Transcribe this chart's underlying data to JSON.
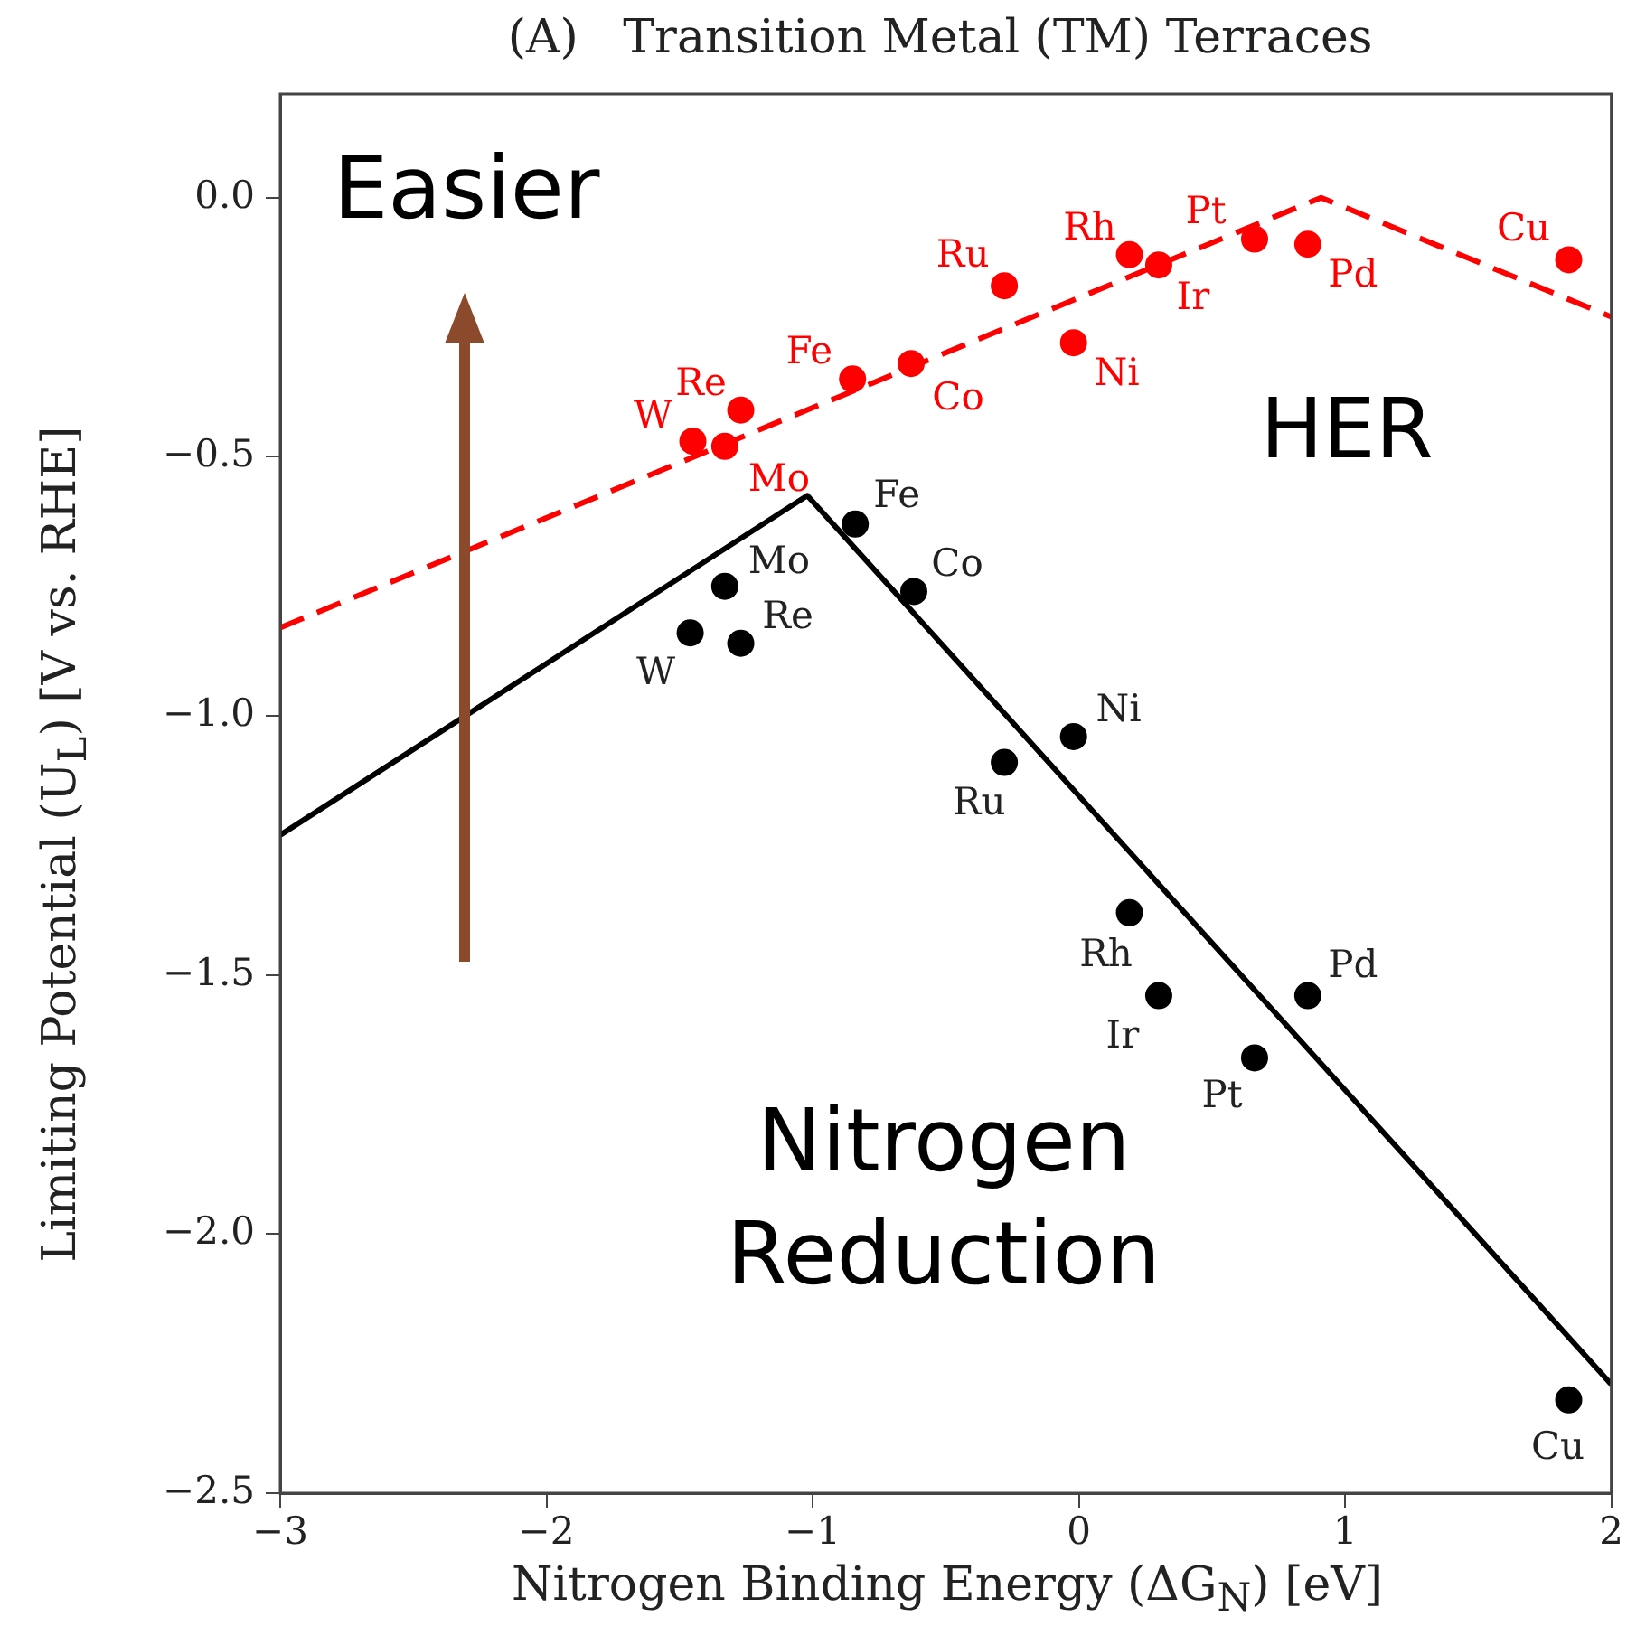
{
  "chart_data": {
    "type": "scatter",
    "title": "(A)   Transition Metal (TM) Terraces",
    "xlabel": "Nitrogen Binding Energy (ΔG$_{N}$) [eV]",
    "ylabel": "Limiting Potential (U$_{L}$) [V vs. RHE]",
    "xlim": [
      -3,
      2
    ],
    "ylim": [
      -2.5,
      0.2
    ],
    "xticks": [
      {
        "value": -3,
        "label": "−3"
      },
      {
        "value": -2,
        "label": "−2"
      },
      {
        "value": -1,
        "label": "−1"
      },
      0,
      1,
      2
    ],
    "yticks": [
      {
        "value": -2.5,
        "label": "−2.5"
      },
      {
        "value": -2,
        "label": "−2.0"
      },
      {
        "value": -1.5,
        "label": "−1.5"
      },
      {
        "value": -1,
        "label": "−1.0"
      },
      {
        "value": -0.5,
        "label": "−0.5"
      },
      {
        "value": 0,
        "label": "0.0"
      }
    ],
    "grid": false,
    "legend": false,
    "marker": "circle",
    "series": [
      {
        "type": "line",
        "color": "#ff0000",
        "line_style": "dashed",
        "marker": "none",
        "x": [
          -3,
          0.91,
          2
        ],
        "values": [
          -0.83,
          0.0,
          -0.23
        ]
      },
      {
        "type": "line",
        "color": "#000000",
        "line_style": "solid",
        "marker": "none",
        "x": [
          -3,
          -1.02,
          2
        ],
        "values": [
          -1.23,
          -0.575,
          -2.29
        ]
      },
      {
        "color": "#ff0000",
        "x": [
          -1.45,
          -1.33,
          -1.27,
          -0.85,
          -0.63,
          -0.28,
          -0.02,
          0.19,
          0.3,
          0.66,
          0.86,
          1.84
        ],
        "values": [
          -0.47,
          -0.48,
          -0.41,
          -0.35,
          -0.32,
          -0.17,
          -0.28,
          -0.11,
          -0.13,
          -0.08,
          -0.09,
          -0.12
        ]
      },
      {
        "color": "#000000",
        "x": [
          -1.46,
          -1.33,
          -1.27,
          -0.84,
          -0.62,
          -0.02,
          -0.28,
          0.19,
          0.3,
          0.86,
          0.66,
          1.84
        ],
        "values": [
          -0.84,
          -0.75,
          -0.86,
          -0.63,
          -0.76,
          -1.04,
          -1.09,
          -1.38,
          -1.54,
          -1.54,
          -1.66,
          -2.32
        ]
      }
    ],
    "annotations": [
      {
        "text": "W",
        "x": -1.45,
        "y": -0.47
      },
      {
        "text": "Mo",
        "x": -1.33,
        "y": -0.48
      },
      {
        "text": "Re",
        "x": -1.27,
        "y": -0.41
      },
      {
        "text": "Fe",
        "x": -0.85,
        "y": -0.35
      },
      {
        "text": "Co",
        "x": -0.63,
        "y": -0.32
      },
      {
        "text": "Ru",
        "x": -0.28,
        "y": -0.17
      },
      {
        "text": "Ni",
        "x": -0.02,
        "y": -0.28
      },
      {
        "text": "Rh",
        "x": 0.19,
        "y": -0.11
      },
      {
        "text": "Ir",
        "x": 0.3,
        "y": -0.13
      },
      {
        "text": "Pt",
        "x": 0.66,
        "y": -0.08
      },
      {
        "text": "Pd",
        "x": 0.86,
        "y": -0.09
      },
      {
        "text": "Cu",
        "x": 1.84,
        "y": -0.12
      },
      {
        "text": "W",
        "x": -1.46,
        "y": -0.84
      },
      {
        "text": "Mo",
        "x": -1.33,
        "y": -0.75
      },
      {
        "text": "Re",
        "x": -1.27,
        "y": -0.86
      },
      {
        "text": "Fe",
        "x": -0.84,
        "y": -0.63
      },
      {
        "text": "Co",
        "x": -0.62,
        "y": -0.76
      },
      {
        "text": "Ni",
        "x": -0.02,
        "y": -1.04
      },
      {
        "text": "Ru",
        "x": -0.28,
        "y": -1.09
      },
      {
        "text": "Rh",
        "x": 0.19,
        "y": -1.38
      },
      {
        "text": "Ir",
        "x": 0.3,
        "y": -1.54
      },
      {
        "text": "Pd",
        "x": 0.86,
        "y": -1.54
      },
      {
        "text": "Pt",
        "x": 0.66,
        "y": -1.66
      },
      {
        "text": "Cu",
        "x": 1.84,
        "y": -2.32
      },
      "Easier",
      "HER",
      "Nitrogen\nReduction"
    ]
  }
}
